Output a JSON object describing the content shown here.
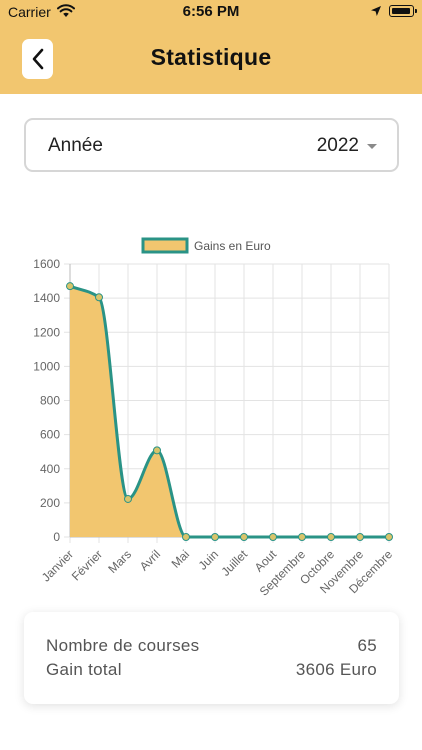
{
  "status_bar": {
    "carrier": "Carrier",
    "time": "6:56 PM",
    "icons": [
      "wifi-icon",
      "location-arrow-icon",
      "battery-icon"
    ]
  },
  "header": {
    "title": "Statistique",
    "back_icon": "chevron-left-icon",
    "background": "#f2c66f"
  },
  "year_selector": {
    "label": "Année",
    "value": "2022",
    "icon": "caret-down-icon"
  },
  "chart_data": {
    "type": "area",
    "categories": [
      "Janvier",
      "Février",
      "Mars",
      "Avril",
      "Mai",
      "Juin",
      "Juillet",
      "Aout",
      "Septembre",
      "Octobre",
      "Novembre",
      "Décembre"
    ],
    "series": [
      {
        "name": "Gains en Euro",
        "values": [
          1470,
          1405,
          223,
          508,
          0,
          0,
          0,
          0,
          0,
          0,
          0,
          0
        ]
      }
    ],
    "ylim": [
      0,
      1600
    ],
    "yticks": [
      0,
      200,
      400,
      600,
      800,
      1000,
      1200,
      1400,
      1600
    ],
    "legend": "top-center",
    "grid": true,
    "colors": {
      "fill": "#f2c66f",
      "line": "#2a9386",
      "point": "#d9c46a",
      "grid": "#e3e3e3"
    }
  },
  "summary": {
    "rows": [
      {
        "label": "Nombre de courses",
        "value": "65"
      },
      {
        "label": "Gain total",
        "value": "3606 Euro"
      }
    ]
  }
}
